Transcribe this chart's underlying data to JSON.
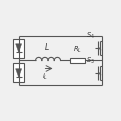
{
  "bg_color": "#f0f0f0",
  "line_color": "#555555",
  "text_color": "#333333",
  "line_width": 0.8,
  "fig_width": 1.21,
  "fig_height": 1.21,
  "dpi": 100,
  "xlim": [
    0,
    12
  ],
  "ylim": [
    0,
    10
  ]
}
